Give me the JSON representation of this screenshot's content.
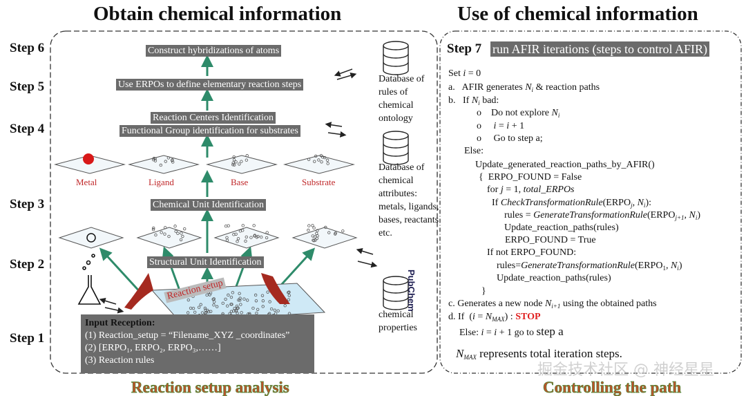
{
  "titles": {
    "left": "Obtain chemical information",
    "right": "Use of chemical information"
  },
  "steps": [
    "Step 6",
    "Step 5",
    "Step 4",
    "Step 3",
    "Step 2",
    "Step 1"
  ],
  "step7": {
    "label": "Step 7",
    "desc": "run AFIR iterations (steps to control AFIR)"
  },
  "labels": {
    "construct": "Construct hybridizations of atoms",
    "use_erpo": "Use ERPOs to define elementary reaction steps",
    "reaction_centers": "Reaction Centers Identification",
    "functional_group": "Functional Group identification for substrates",
    "chemical_unit": "Chemical Unit Identification",
    "structural_unit": "Structural Unit Identification",
    "reaction_setup": "Reaction setup"
  },
  "planes": [
    "Metal",
    "Ligand",
    "Base",
    "Substrate"
  ],
  "databases": [
    {
      "text": "Database of rules of chemical ontology"
    },
    {
      "text": "Database of chemical attributes: metals, ligands, bases, reactants etc."
    },
    {
      "text": "chemical properties",
      "logo": "PubChem"
    }
  ],
  "input": {
    "title": "Input Reception:",
    "items": [
      "(1) Reaction_setup = “Filename_XYZ _coordinates”",
      "(2) [ERPO₁, ERPO₂, ERPO₃,……]",
      "(3) Reaction rules"
    ]
  },
  "algo": {
    "lines": [
      {
        "segs": [
          {
            "t": "Set "
          },
          {
            "t": "i",
            "s": "i"
          },
          {
            "t": " = 0"
          }
        ]
      },
      {
        "segs": [
          {
            "t": "a.   AFIR generates "
          },
          {
            "t": "N",
            "s": "i"
          },
          {
            "t": "i",
            "s": "sub i"
          },
          {
            "t": " & reaction paths"
          }
        ]
      },
      {
        "segs": [
          {
            "t": "b.   If "
          },
          {
            "t": "N",
            "s": "i"
          },
          {
            "t": "i",
            "s": "sub i"
          },
          {
            "t": " bad:"
          }
        ]
      },
      {
        "segs": [
          {
            "t": "o    Do not explore "
          },
          {
            "t": "N",
            "s": "i"
          },
          {
            "t": "i",
            "s": "sub i"
          }
        ]
      },
      {
        "segs": [
          {
            "t": "o     "
          },
          {
            "t": "i",
            "s": "i"
          },
          {
            "t": " = "
          },
          {
            "t": "i",
            "s": "i"
          },
          {
            "t": " + 1"
          }
        ]
      },
      {
        "segs": [
          {
            "t": "o     Go to step a;"
          }
        ]
      },
      {
        "segs": [
          {
            "t": "Else:"
          }
        ]
      },
      {
        "segs": [
          {
            "t": "Update_generated_reaction_paths_by_AFIR()"
          }
        ]
      },
      {
        "segs": [
          {
            "t": "{  ERPO_FOUND = False"
          }
        ]
      },
      {
        "segs": [
          {
            "t": "for "
          },
          {
            "t": "j",
            "s": "i"
          },
          {
            "t": " = 1, "
          },
          {
            "t": "total_ERPOs",
            "s": "i"
          }
        ]
      },
      {
        "segs": [
          {
            "t": "If "
          },
          {
            "t": "CheckTransformationRule",
            "s": "i"
          },
          {
            "t": "(ERPO"
          },
          {
            "t": "j",
            "s": "sub i"
          },
          {
            "t": ", "
          },
          {
            "t": "N",
            "s": "i"
          },
          {
            "t": "i",
            "s": "sub i"
          },
          {
            "t": "):"
          }
        ]
      },
      {
        "segs": [
          {
            "t": "rules = "
          },
          {
            "t": "GenerateTransformationRule",
            "s": "i"
          },
          {
            "t": "(ERPO"
          },
          {
            "t": "j+1",
            "s": "sub i"
          },
          {
            "t": ", "
          },
          {
            "t": "N",
            "s": "i"
          },
          {
            "t": "i",
            "s": "sub i"
          },
          {
            "t": ")"
          }
        ]
      },
      {
        "segs": [
          {
            "t": "Update_reaction_paths(rules)"
          }
        ]
      },
      {
        "segs": [
          {
            "t": "ERPO_FOUND = True"
          }
        ]
      },
      {
        "segs": [
          {
            "t": "If not ERPO_FOUND:"
          }
        ]
      },
      {
        "segs": [
          {
            "t": "rules="
          },
          {
            "t": "GenerateTransformationRule",
            "s": "i"
          },
          {
            "t": "(ERPO"
          },
          {
            "t": "1",
            "s": "sub"
          },
          {
            "t": ", "
          },
          {
            "t": "N",
            "s": "i"
          },
          {
            "t": "i",
            "s": "sub i"
          },
          {
            "t": ")"
          }
        ]
      },
      {
        "segs": [
          {
            "t": "Update_reaction_paths(rules)"
          }
        ]
      },
      {
        "segs": [
          {
            "t": "}"
          }
        ]
      },
      {
        "segs": [
          {
            "t": "c. Generates a new node "
          },
          {
            "t": "N",
            "s": "i"
          },
          {
            "t": "i+1",
            "s": "sub i"
          },
          {
            "t": " using the obtained paths"
          }
        ]
      },
      {
        "segs": [
          {
            "t": "d. If  ("
          },
          {
            "t": "i",
            "s": "i"
          },
          {
            "t": " = "
          },
          {
            "t": "N",
            "s": "i"
          },
          {
            "t": "MAX",
            "s": "sub i"
          },
          {
            "t": ") : "
          },
          {
            "t": "STOP",
            "s": "red"
          }
        ]
      },
      {
        "segs": [
          {
            "t": "Else: "
          },
          {
            "t": "i",
            "s": "i"
          },
          {
            "t": " = "
          },
          {
            "t": "i",
            "s": "i"
          },
          {
            "t": " + 1 go to "
          },
          {
            "t": "step a",
            "s": "big"
          }
        ]
      },
      {
        "segs": [
          {
            "t": "N",
            "s": "i big"
          },
          {
            "t": "MAX",
            "s": "sub i"
          },
          {
            "t": " represents total iteration steps.",
            "s": "big"
          }
        ]
      }
    ]
  },
  "bottom": {
    "left": "Reaction setup analysis",
    "right": "Controlling the path"
  },
  "watermark": "掘金技术社区 @ 神经星星",
  "colors": {
    "arrow_green": "#2e8b6a",
    "label_gray": "#6b6b6b",
    "plane_red": "#c0282a",
    "stop_red": "#e02020",
    "plane_fill": "#e8f4fb"
  }
}
